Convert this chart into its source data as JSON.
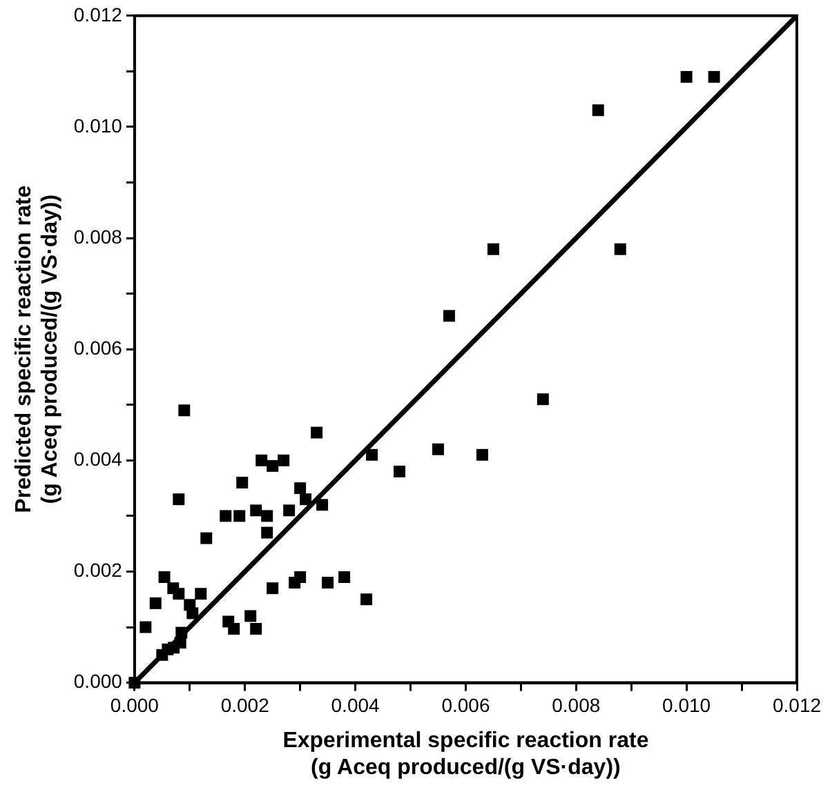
{
  "chart_data": {
    "type": "scatter",
    "xlabel": "Experimental specific reaction rate\n(g Aceq produced/(g VS·day))",
    "ylabel": "Predicted specific reaction rate\n(g Aceq produced/(g VS·day))",
    "grid": false,
    "legend": false,
    "xlim": [
      0,
      0.012
    ],
    "ylim": [
      0,
      0.012
    ],
    "xticks": [
      {
        "value": 0,
        "label": "0.000"
      },
      {
        "value": 0.001,
        "label": null
      },
      {
        "value": 0.002,
        "label": "0.002"
      },
      {
        "value": 0.003,
        "label": null
      },
      {
        "value": 0.004,
        "label": "0.004"
      },
      {
        "value": 0.005,
        "label": null
      },
      {
        "value": 0.006,
        "label": "0.006"
      },
      {
        "value": 0.007,
        "label": null
      },
      {
        "value": 0.008,
        "label": "0.008"
      },
      {
        "value": 0.009,
        "label": null
      },
      {
        "value": 0.01,
        "label": "0.010"
      },
      {
        "value": 0.011,
        "label": null
      },
      {
        "value": 0.012,
        "label": "0.012"
      }
    ],
    "yticks": [
      {
        "value": 0,
        "label": "0.000"
      },
      {
        "value": 0.001,
        "label": null
      },
      {
        "value": 0.002,
        "label": "0.002"
      },
      {
        "value": 0.003,
        "label": null
      },
      {
        "value": 0.004,
        "label": "0.004"
      },
      {
        "value": 0.005,
        "label": null
      },
      {
        "value": 0.006,
        "label": "0.006"
      },
      {
        "value": 0.007,
        "label": null
      },
      {
        "value": 0.008,
        "label": "0.008"
      },
      {
        "value": 0.009,
        "label": null
      },
      {
        "value": 0.01,
        "label": "0.010"
      },
      {
        "value": 0.011,
        "label": null
      },
      {
        "value": 0.012,
        "label": "0.012"
      }
    ],
    "series": [
      {
        "marker": "square",
        "color": "#000000",
        "x": [
          0,
          0.0002,
          0.00038,
          0.00054,
          0.0007,
          0.0008,
          0.0008,
          0.0009,
          0.0005,
          0.0006,
          0.00071,
          0.00083,
          0.00085,
          0.00105,
          0.001,
          0.0012,
          0.0013,
          0.0017,
          0.0018,
          0.00165,
          0.0019,
          0.00195,
          0.0021,
          0.0022,
          0.0022,
          0.0023,
          0.0024,
          0.0025,
          0.0025,
          0.0024,
          0.0027,
          0.0029,
          0.003,
          0.0028,
          0.003,
          0.0031,
          0.0033,
          0.0034,
          0.0035,
          0.0038,
          0.0042,
          0.0043,
          0.0048,
          0.0055,
          0.0057,
          0.0063,
          0.0065,
          0.0074,
          0.0084,
          0.0088,
          0.01,
          0.0105
        ],
        "values": [
          0,
          0.001,
          0.00143,
          0.0019,
          0.0017,
          0.0016,
          0.0033,
          0.0049,
          0.0005,
          0.0006,
          0.00063,
          0.00072,
          0.0009,
          0.00125,
          0.0014,
          0.0016,
          0.0026,
          0.0011,
          0.00097,
          0.003,
          0.003,
          0.0036,
          0.0012,
          0.00097,
          0.0031,
          0.004,
          0.003,
          0.0017,
          0.0039,
          0.0027,
          0.004,
          0.0018,
          0.0019,
          0.0031,
          0.0035,
          0.0033,
          0.0045,
          0.0032,
          0.0018,
          0.0019,
          0.0015,
          0.0041,
          0.0038,
          0.0042,
          0.0066,
          0.0041,
          0.0078,
          0.0051,
          0.0103,
          0.0078,
          0.0109,
          0.0109
        ]
      },
      {
        "type": "line",
        "color": "#000000",
        "x": [
          0,
          0.012
        ],
        "values": [
          0,
          0.012
        ]
      }
    ]
  }
}
